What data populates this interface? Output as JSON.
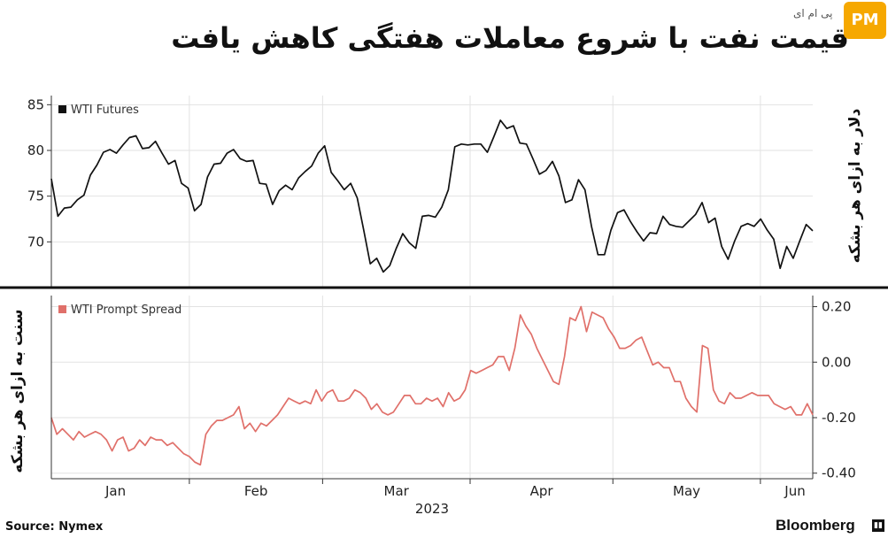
{
  "header": {
    "title": "قیمت نفت با شروع معاملات هفتگی کاهش یافت",
    "site_name": "پی ام ای",
    "logo_text": "PM"
  },
  "footer": {
    "source": "Source: Nymex",
    "publisher": "Bloomberg"
  },
  "chart_data": [
    {
      "type": "line",
      "position": "top",
      "legend": "WTI Futures",
      "ylabel": "دلار به ازای هر بشکه",
      "yticks": [
        70,
        75,
        80,
        85
      ],
      "ylim": [
        65,
        86
      ],
      "grid": true,
      "color": "#111111",
      "x_start": "2023-01-03",
      "x_end": "2023-06-12",
      "values": [
        76.9,
        72.8,
        73.7,
        73.8,
        74.6,
        75.1,
        77.3,
        78.4,
        79.8,
        80.1,
        79.7,
        80.6,
        81.4,
        81.6,
        80.2,
        80.3,
        81.0,
        79.7,
        78.5,
        78.9,
        76.4,
        75.9,
        73.4,
        74.1,
        77.1,
        78.5,
        78.6,
        79.7,
        80.1,
        79.1,
        78.8,
        78.9,
        76.4,
        76.3,
        74.1,
        75.6,
        76.2,
        75.7,
        77.0,
        77.7,
        78.3,
        79.7,
        80.5,
        77.6,
        76.7,
        75.7,
        76.4,
        74.8,
        71.3,
        67.6,
        68.2,
        66.7,
        67.4,
        69.3,
        70.9,
        69.9,
        69.3,
        72.8,
        72.9,
        72.7,
        73.8,
        75.7,
        80.4,
        80.7,
        80.6,
        80.7,
        80.7,
        79.8,
        81.5,
        83.3,
        82.4,
        82.7,
        80.8,
        80.7,
        79.1,
        77.4,
        77.8,
        78.8,
        77.2,
        74.3,
        74.6,
        76.8,
        75.7,
        71.7,
        68.6,
        68.6,
        71.3,
        73.2,
        73.5,
        72.2,
        71.1,
        70.1,
        71.0,
        70.9,
        72.8,
        71.9,
        71.7,
        71.6,
        72.3,
        73.0,
        74.3,
        72.1,
        72.6,
        69.5,
        68.1,
        70.1,
        71.7,
        72.0,
        71.7,
        72.5,
        71.3,
        70.3,
        67.1,
        69.5,
        68.2,
        70.1,
        71.9,
        71.2
      ]
    },
    {
      "type": "line",
      "position": "bottom",
      "legend": "WTI Prompt Spread",
      "ylabel": "سنت به ازای هر بشکه",
      "yticks": [
        -0.4,
        -0.2,
        0.0,
        0.2
      ],
      "ylim": [
        -0.42,
        0.24
      ],
      "grid": true,
      "color": "#e0706a",
      "x_start": "2023-01-03",
      "x_end": "2023-06-12",
      "xticks": [
        "Jan",
        "Feb",
        "Mar",
        "Apr",
        "May",
        "Jun"
      ],
      "year_label": "2023",
      "values": [
        -0.2,
        -0.26,
        -0.24,
        -0.26,
        -0.28,
        -0.25,
        -0.27,
        -0.26,
        -0.25,
        -0.26,
        -0.28,
        -0.32,
        -0.28,
        -0.27,
        -0.32,
        -0.31,
        -0.28,
        -0.3,
        -0.27,
        -0.28,
        -0.28,
        -0.3,
        -0.29,
        -0.31,
        -0.33,
        -0.34,
        -0.36,
        -0.37,
        -0.26,
        -0.23,
        -0.21,
        -0.21,
        -0.2,
        -0.19,
        -0.16,
        -0.24,
        -0.22,
        -0.25,
        -0.22,
        -0.23,
        -0.21,
        -0.19,
        -0.16,
        -0.13,
        -0.14,
        -0.15,
        -0.14,
        -0.15,
        -0.1,
        -0.14,
        -0.11,
        -0.1,
        -0.14,
        -0.14,
        -0.13,
        -0.1,
        -0.11,
        -0.13,
        -0.17,
        -0.15,
        -0.18,
        -0.19,
        -0.18,
        -0.15,
        -0.12,
        -0.12,
        -0.15,
        -0.15,
        -0.13,
        -0.14,
        -0.13,
        -0.16,
        -0.11,
        -0.14,
        -0.13,
        -0.1,
        -0.03,
        -0.04,
        -0.03,
        -0.02,
        -0.01,
        0.02,
        0.02,
        -0.03,
        0.05,
        0.17,
        0.13,
        0.1,
        0.05,
        0.01,
        -0.03,
        -0.07,
        -0.08,
        0.02,
        0.16,
        0.15,
        0.2,
        0.11,
        0.18,
        0.17,
        0.16,
        0.12,
        0.09,
        0.05,
        0.05,
        0.06,
        0.08,
        0.09,
        0.04,
        -0.01,
        0.0,
        -0.02,
        -0.02,
        -0.07,
        -0.07,
        -0.13,
        -0.16,
        -0.18,
        0.06,
        0.05,
        -0.1,
        -0.14,
        -0.15,
        -0.11,
        -0.13,
        -0.13,
        -0.12,
        -0.11,
        -0.12,
        -0.12,
        -0.12,
        -0.15,
        -0.16,
        -0.17,
        -0.16,
        -0.19,
        -0.19,
        -0.15,
        -0.19
      ]
    }
  ]
}
